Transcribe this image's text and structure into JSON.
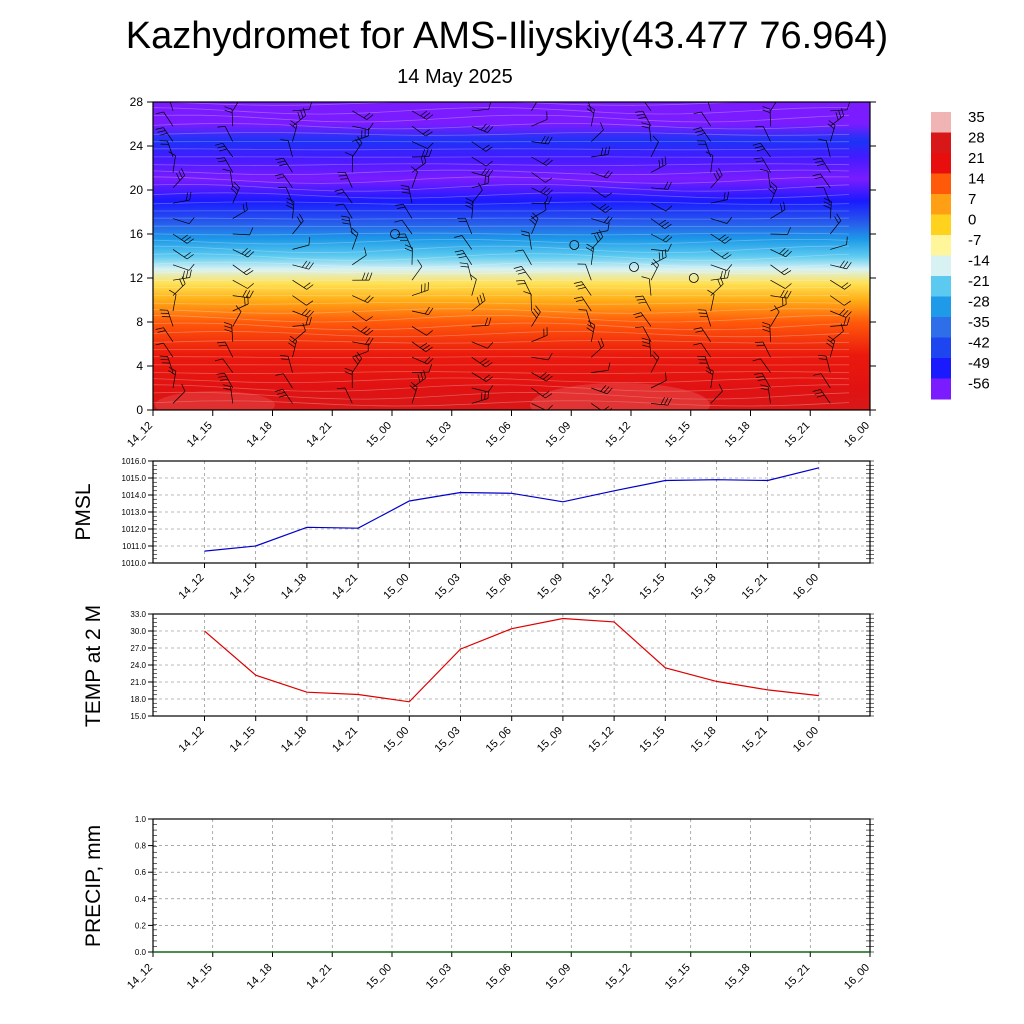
{
  "title": "Kazhydromet for AMS-Iliyskiy(43.477 76.964)",
  "subtitle": "14 May 2025",
  "time_labels": [
    "14_12",
    "14_15",
    "14_18",
    "14_21",
    "15_00",
    "15_03",
    "15_06",
    "15_09",
    "15_12",
    "15_15",
    "15_18",
    "15_21",
    "16_00"
  ],
  "colorbar": {
    "labels": [
      "35",
      "28",
      "21",
      "14",
      "7",
      "0",
      "-7",
      "-14",
      "-21",
      "-28",
      "-35",
      "-42",
      "-49",
      "-56"
    ]
  },
  "chart_data": [
    {
      "type": "heatmap",
      "title": "Kazhydromet for AMS-Iliyskiy(43.477 76.964)",
      "subtitle": "14 May 2025",
      "x": [
        "14_12",
        "14_15",
        "14_18",
        "14_21",
        "15_00",
        "15_03",
        "15_06",
        "15_09",
        "15_12",
        "15_15",
        "15_18",
        "15_21",
        "16_00"
      ],
      "ylim": [
        0,
        28
      ],
      "yticks": [
        0,
        4,
        8,
        12,
        16,
        20,
        24,
        28
      ],
      "color_levels": [
        35,
        28,
        21,
        14,
        7,
        0,
        -7,
        -14,
        -21,
        -28,
        -35,
        -42,
        -49,
        -56
      ],
      "overlay": "wind barbs",
      "profile": [
        {
          "height": 0,
          "value": 28
        },
        {
          "height": 2,
          "value": 24
        },
        {
          "height": 5,
          "value": 20
        },
        {
          "height": 8,
          "value": 14
        },
        {
          "height": 10,
          "value": 5
        },
        {
          "height": 11.5,
          "value": -3
        },
        {
          "height": 12.8,
          "value": -14
        },
        {
          "height": 14,
          "value": -21
        },
        {
          "height": 15.5,
          "value": -28
        },
        {
          "height": 17,
          "value": -38
        },
        {
          "height": 19,
          "value": -49
        },
        {
          "height": 21,
          "value": -56
        },
        {
          "height": 23,
          "value": -52
        },
        {
          "height": 24.5,
          "value": -45
        },
        {
          "height": 26,
          "value": -56
        },
        {
          "height": 28,
          "value": -56
        }
      ]
    },
    {
      "type": "line",
      "ylabel": "PMSL",
      "x": [
        "14_12",
        "14_15",
        "14_18",
        "14_21",
        "15_00",
        "15_03",
        "15_06",
        "15_09",
        "15_12",
        "15_15",
        "15_18",
        "15_21",
        "16_00"
      ],
      "series": [
        {
          "values": [
            1010.7,
            1011.0,
            1012.1,
            1012.05,
            1013.65,
            1014.15,
            1014.1,
            1013.6,
            1014.25,
            1014.85,
            1014.9,
            1014.85,
            1015.6
          ]
        }
      ],
      "ylim": [
        1010.0,
        1016.0
      ],
      "yticks": [
        "1010.0",
        "1011.0",
        "1012.0",
        "1013.0",
        "1014.0",
        "1015.0",
        "1016.0"
      ],
      "color": "#0000cc",
      "grid": true
    },
    {
      "type": "line",
      "ylabel": "TEMP at 2 M",
      "x": [
        "14_12",
        "14_15",
        "14_18",
        "14_21",
        "15_00",
        "15_03",
        "15_06",
        "15_09",
        "15_12",
        "15_15",
        "15_18",
        "15_21",
        "16_00"
      ],
      "series": [
        {
          "values": [
            30.0,
            22.2,
            19.2,
            18.8,
            17.5,
            26.8,
            30.4,
            32.2,
            31.6,
            23.5,
            21.1,
            19.6,
            18.6
          ]
        }
      ],
      "ylim": [
        15.0,
        33.0
      ],
      "yticks": [
        "15.0",
        "18.0",
        "21.0",
        "24.0",
        "27.0",
        "30.0",
        "33.0"
      ],
      "color": "#dd0000",
      "grid": true
    },
    {
      "type": "line",
      "ylabel": "PRECIP, mm",
      "x": [
        "14_12",
        "14_15",
        "14_18",
        "14_21",
        "15_00",
        "15_03",
        "15_06",
        "15_09",
        "15_12",
        "15_15",
        "15_18",
        "15_21",
        "16_00"
      ],
      "series": [
        {
          "values": [
            0,
            0,
            0,
            0,
            0,
            0,
            0,
            0,
            0,
            0,
            0,
            0,
            0
          ]
        }
      ],
      "ylim": [
        0.0,
        1.0
      ],
      "yticks": [
        "0.0",
        "0.2",
        "0.4",
        "0.6",
        "0.8",
        "1.0"
      ],
      "color": "#006600",
      "grid": true
    }
  ]
}
